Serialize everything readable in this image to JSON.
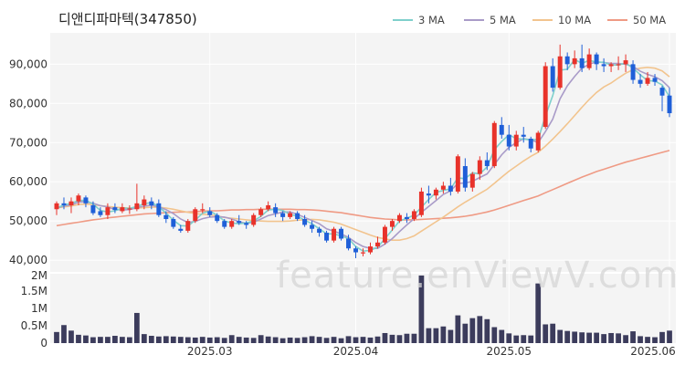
{
  "header": {
    "title": "디앤디파마텍(347850)"
  },
  "watermark": "feature.enViewV.com",
  "chart_data": {
    "type": "candlestick",
    "price_ylim": [
      37000,
      98000
    ],
    "price_ticks": [
      40000,
      50000,
      60000,
      70000,
      80000,
      90000
    ],
    "price_tick_labels": [
      "40,000",
      "50,000",
      "60,000",
      "70,000",
      "80,000",
      "90,000"
    ],
    "volume_ylim": [
      0,
      2000000
    ],
    "volume_ticks": [
      0,
      500000,
      1000000,
      1500000,
      2000000
    ],
    "volume_tick_labels": [
      "0",
      "0.5M",
      "1M",
      "1.5M",
      "2M"
    ],
    "x_tick_labels": [
      {
        "label": "2025.03",
        "index": 21
      },
      {
        "label": "2025.04",
        "index": 41
      },
      {
        "label": "2025.05",
        "index": 62
      },
      {
        "label": "2025.06",
        "index": 84
      }
    ],
    "legend": [
      {
        "name": "3 MA",
        "color": "#7fd0cc"
      },
      {
        "name": "5 MA",
        "color": "#a99bc8"
      },
      {
        "name": "10 MA",
        "color": "#f2c48e"
      },
      {
        "name": "50 MA",
        "color": "#ef9a84"
      }
    ],
    "colors": {
      "up": "#e8322a",
      "down": "#1f5fd8",
      "volume": "#3c3c5c"
    },
    "candles": [
      [
        53000,
        55000,
        51500,
        54500
      ],
      [
        54500,
        56000,
        53000,
        54000
      ],
      [
        54000,
        56000,
        52000,
        55000
      ],
      [
        55000,
        57000,
        54000,
        56500
      ],
      [
        56000,
        56500,
        53500,
        54500
      ],
      [
        54000,
        55000,
        51500,
        52000
      ],
      [
        52500,
        53500,
        51000,
        51500
      ],
      [
        51500,
        54500,
        50500,
        53500
      ],
      [
        53500,
        54500,
        52000,
        52800
      ],
      [
        52500,
        54500,
        52000,
        53500
      ],
      [
        53200,
        54000,
        51800,
        53200
      ],
      [
        53000,
        59500,
        52500,
        54500
      ],
      [
        54000,
        56500,
        53000,
        55500
      ],
      [
        55000,
        56000,
        53000,
        54000
      ],
      [
        54500,
        55500,
        51000,
        51500
      ],
      [
        51500,
        52500,
        49500,
        50500
      ],
      [
        50500,
        51000,
        48000,
        48500
      ],
      [
        48000,
        49000,
        47000,
        47500
      ],
      [
        47500,
        50500,
        47000,
        50000
      ],
      [
        50000,
        53500,
        49500,
        53000
      ],
      [
        53000,
        54500,
        52000,
        53000
      ],
      [
        52500,
        53500,
        51000,
        51500
      ],
      [
        51500,
        52000,
        49500,
        50000
      ],
      [
        50000,
        50500,
        48000,
        48500
      ],
      [
        48500,
        50500,
        48000,
        50000
      ],
      [
        50000,
        51500,
        49000,
        49500
      ],
      [
        49500,
        50000,
        48000,
        49000
      ],
      [
        49000,
        52000,
        48500,
        51500
      ],
      [
        51500,
        53500,
        51000,
        53000
      ],
      [
        53000,
        55000,
        52500,
        54000
      ],
      [
        53500,
        54500,
        51000,
        52000
      ],
      [
        52000,
        52500,
        50000,
        51000
      ],
      [
        51000,
        52500,
        50500,
        52000
      ],
      [
        52000,
        52500,
        50000,
        50500
      ],
      [
        50500,
        51500,
        48500,
        49000
      ],
      [
        49000,
        50000,
        47000,
        48000
      ],
      [
        48000,
        48500,
        46000,
        47000
      ],
      [
        47000,
        47500,
        44500,
        45000
      ],
      [
        45000,
        48500,
        44500,
        48000
      ],
      [
        48000,
        48500,
        45000,
        45500
      ],
      [
        45500,
        46500,
        42500,
        43000
      ],
      [
        43000,
        43500,
        40500,
        42000
      ],
      [
        42000,
        43000,
        41000,
        42000
      ],
      [
        42000,
        44500,
        41500,
        43500
      ],
      [
        43500,
        46000,
        43000,
        44500
      ],
      [
        44500,
        49000,
        44000,
        48500
      ],
      [
        48500,
        50500,
        47500,
        50000
      ],
      [
        50000,
        52000,
        49500,
        51500
      ],
      [
        51000,
        52000,
        49500,
        50500
      ],
      [
        50500,
        53000,
        50000,
        52500
      ],
      [
        51500,
        58500,
        51000,
        57500
      ],
      [
        57000,
        59000,
        54500,
        56500
      ],
      [
        56500,
        58500,
        55500,
        58000
      ],
      [
        58000,
        60000,
        57000,
        59000
      ],
      [
        59000,
        61000,
        56500,
        57500
      ],
      [
        57500,
        67000,
        57000,
        66500
      ],
      [
        64000,
        66000,
        57500,
        58500
      ],
      [
        58500,
        62500,
        57500,
        62000
      ],
      [
        62000,
        66500,
        60500,
        65500
      ],
      [
        65500,
        67500,
        63000,
        64000
      ],
      [
        64000,
        75500,
        63500,
        75000
      ],
      [
        74500,
        76500,
        71000,
        72000
      ],
      [
        72000,
        74500,
        68000,
        69000
      ],
      [
        69000,
        73000,
        68000,
        72000
      ],
      [
        72000,
        74000,
        70000,
        71500
      ],
      [
        71000,
        71500,
        67500,
        68500
      ],
      [
        68000,
        73000,
        67500,
        72500
      ],
      [
        74000,
        90500,
        73500,
        89500
      ],
      [
        89500,
        91500,
        83000,
        84000
      ],
      [
        84000,
        95000,
        83500,
        92000
      ],
      [
        92000,
        93000,
        88500,
        90000
      ],
      [
        90000,
        93500,
        89000,
        91500
      ],
      [
        91500,
        95000,
        88000,
        89000
      ],
      [
        89000,
        94000,
        88500,
        92500
      ],
      [
        92500,
        93000,
        88500,
        90000
      ],
      [
        90000,
        91500,
        88000,
        89500
      ],
      [
        89500,
        90500,
        88000,
        90000
      ],
      [
        90000,
        92000,
        88500,
        90000
      ],
      [
        90000,
        92500,
        88000,
        91000
      ],
      [
        90000,
        91000,
        85000,
        86000
      ],
      [
        86000,
        87500,
        84000,
        85000
      ],
      [
        85000,
        88000,
        84500,
        86500
      ],
      [
        86500,
        87500,
        84500,
        85500
      ],
      [
        84000,
        84500,
        78000,
        82000
      ],
      [
        82000,
        84000,
        76500,
        77500
      ]
    ],
    "volumes": [
      320000,
      520000,
      360000,
      240000,
      220000,
      170000,
      180000,
      180000,
      210000,
      180000,
      170000,
      870000,
      260000,
      210000,
      190000,
      200000,
      190000,
      180000,
      170000,
      160000,
      180000,
      160000,
      170000,
      150000,
      230000,
      180000,
      160000,
      150000,
      230000,
      190000,
      170000,
      140000,
      160000,
      150000,
      170000,
      200000,
      180000,
      150000,
      180000,
      140000,
      200000,
      170000,
      180000,
      160000,
      190000,
      290000,
      240000,
      230000,
      270000,
      270000,
      1950000,
      430000,
      430000,
      480000,
      380000,
      800000,
      560000,
      720000,
      780000,
      690000,
      460000,
      380000,
      280000,
      220000,
      230000,
      220000,
      1720000,
      540000,
      560000,
      380000,
      350000,
      330000,
      310000,
      300000,
      300000,
      260000,
      290000,
      280000,
      230000,
      340000,
      200000,
      180000,
      170000,
      320000,
      360000
    ],
    "ma3": [
      53300,
      54100,
      54500,
      55200,
      55300,
      54300,
      52700,
      52300,
      52600,
      53300,
      53200,
      53700,
      54400,
      54700,
      53700,
      52000,
      50200,
      48800,
      48700,
      50200,
      52000,
      52500,
      51500,
      50000,
      49500,
      49300,
      49500,
      50000,
      51200,
      52800,
      53000,
      52700,
      51700,
      51200,
      50200,
      49300,
      48000,
      46700,
      46700,
      46200,
      45500,
      43500,
      42300,
      42500,
      43300,
      45500,
      47700,
      50000,
      50700,
      51500,
      53500,
      55500,
      57300,
      57800,
      58200,
      61000,
      60800,
      62300,
      62000,
      63800,
      68200,
      70300,
      72000,
      71000,
      70900,
      70700,
      70800,
      76800,
      82000,
      88500,
      88700,
      91200,
      90200,
      91000,
      90500,
      90500,
      89800,
      89800,
      90300,
      89000,
      87300,
      85800,
      85700,
      84700,
      81700
    ],
    "ma5": [
      53300,
      53800,
      54100,
      54800,
      54900,
      54500,
      53900,
      53600,
      52900,
      52800,
      52900,
      53400,
      53800,
      54000,
      53600,
      52900,
      51900,
      50500,
      49600,
      49900,
      50600,
      51000,
      51100,
      51000,
      50500,
      49800,
      49400,
      49700,
      50500,
      51400,
      51800,
      52300,
      52300,
      51700,
      50900,
      50100,
      49300,
      48000,
      47400,
      46700,
      45800,
      44500,
      43500,
      43000,
      43000,
      44100,
      45500,
      47300,
      49000,
      50600,
      52200,
      53700,
      55200,
      56800,
      57700,
      59600,
      59700,
      60100,
      61100,
      62000,
      64400,
      66900,
      68800,
      70000,
      71000,
      70700,
      70000,
      72800,
      76000,
      81200,
      84500,
      86900,
      89000,
      90000,
      90600,
      90400,
      90200,
      90200,
      90000,
      89400,
      88200,
      87400,
      86800,
      85800,
      84000
    ],
    "ma10": [
      53300,
      53600,
      53800,
      54200,
      54300,
      54200,
      53900,
      53700,
      53500,
      53400,
      53300,
      53300,
      53400,
      53500,
      53500,
      53300,
      53000,
      52600,
      52200,
      51900,
      51700,
      51600,
      51300,
      50900,
      50700,
      50500,
      50300,
      50100,
      50000,
      49900,
      49900,
      49900,
      50000,
      50200,
      50300,
      50400,
      50300,
      50000,
      49700,
      49200,
      48500,
      47800,
      47100,
      46400,
      45800,
      45400,
      45100,
      45100,
      45500,
      46200,
      47400,
      48600,
      49800,
      51000,
      52300,
      53600,
      54800,
      55900,
      57000,
      58100,
      59600,
      61200,
      62700,
      64000,
      65300,
      66500,
      67500,
      69100,
      70900,
      72800,
      74800,
      76900,
      79000,
      81000,
      82800,
      84200,
      85200,
      86500,
      87700,
      88600,
      89000,
      89200,
      89000,
      88300,
      86800
    ],
    "ma50": [
      48800,
      49100,
      49400,
      49700,
      50000,
      50300,
      50500,
      50800,
      51000,
      51200,
      51400,
      51600,
      51800,
      51900,
      52000,
      52100,
      52200,
      52300,
      52300,
      52400,
      52500,
      52600,
      52600,
      52700,
      52800,
      52800,
      52900,
      52900,
      53000,
      53000,
      53000,
      53000,
      53000,
      52900,
      52900,
      52800,
      52700,
      52500,
      52300,
      52100,
      51800,
      51500,
      51200,
      50900,
      50700,
      50500,
      50400,
      50300,
      50300,
      50300,
      50400,
      50500,
      50600,
      50700,
      50800,
      51000,
      51200,
      51500,
      51900,
      52300,
      52800,
      53400,
      54000,
      54600,
      55200,
      55800,
      56400,
      57200,
      58000,
      58800,
      59600,
      60400,
      61200,
      61900,
      62600,
      63200,
      63800,
      64400,
      65000,
      65500,
      66000,
      66500,
      67000,
      67500,
      68000
    ]
  }
}
